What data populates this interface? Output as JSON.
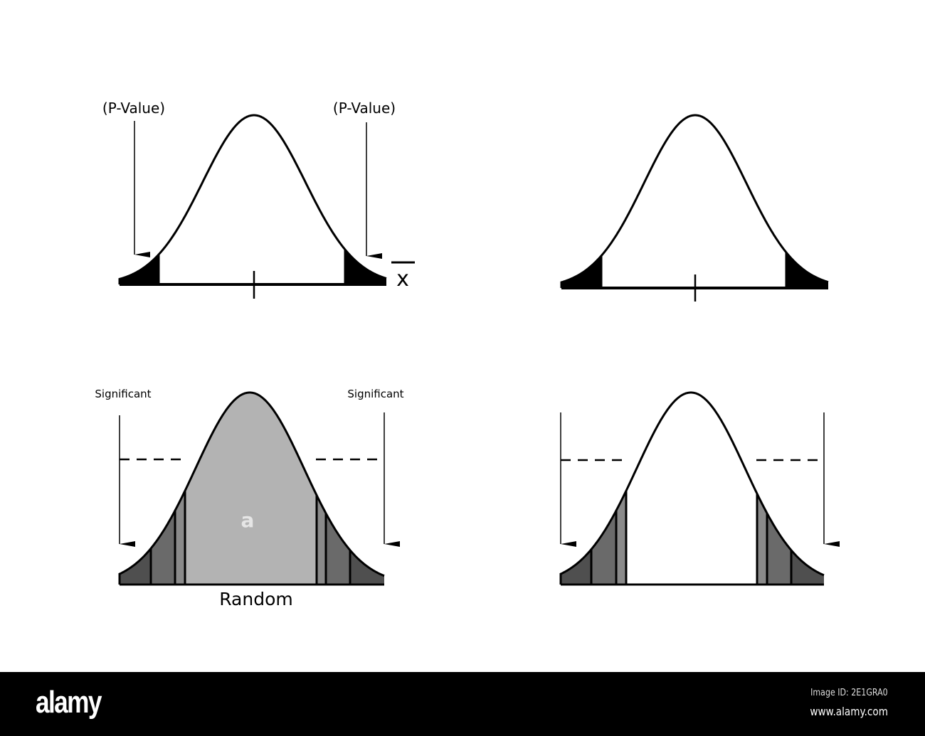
{
  "panels": {
    "top_left": {
      "left_label": "(P-Value)",
      "right_label": "(P-Value)",
      "axis_symbol": "x"
    },
    "bottom_left": {
      "left_label": "Significant",
      "right_label": "Significant",
      "bottom_label": "Random",
      "watermark": "a"
    }
  },
  "colors": {
    "tail_black": "#000000",
    "center_gray": "#b3b3b3",
    "band_mid": "#8a8a8a",
    "band_dark": "#6a6a6a",
    "band_darkest": "#4f4f4f"
  },
  "footer": {
    "logo": "alamy",
    "image_id": "Image ID: 2E1GRA0",
    "url": "www.alamy.com"
  }
}
